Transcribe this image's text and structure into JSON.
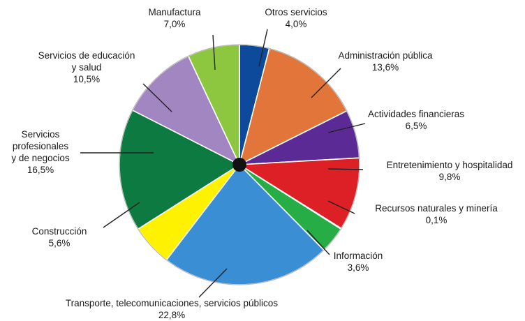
{
  "chart_data": {
    "type": "pie",
    "title": "",
    "slices": [
      {
        "lines": [
          "Otros servicios"
        ],
        "value_label": "4,0%",
        "value": 4.0,
        "color": "#0d4a9c"
      },
      {
        "lines": [
          "Administración pública"
        ],
        "value_label": "13,6%",
        "value": 13.6,
        "color": "#e2763a"
      },
      {
        "lines": [
          "Actividades financieras"
        ],
        "value_label": "6,5%",
        "value": 6.5,
        "color": "#5b2a94"
      },
      {
        "lines": [
          "Entretenimiento y hospitalidad"
        ],
        "value_label": "9,8%",
        "value": 9.8,
        "color": "#dd1f26"
      },
      {
        "lines": [
          "Recursos naturales y minería"
        ],
        "value_label": "0,1%",
        "value": 0.1,
        "color": "#86d3f2"
      },
      {
        "lines": [
          "Información"
        ],
        "value_label": "3,6%",
        "value": 3.6,
        "color": "#27ad45"
      },
      {
        "lines": [
          "Transporte, telecomunicaciones, servicios públicos"
        ],
        "value_label": "22,8%",
        "value": 22.8,
        "color": "#3a8ed4"
      },
      {
        "lines": [
          "Construcción"
        ],
        "value_label": "5,6%",
        "value": 5.6,
        "color": "#fff200"
      },
      {
        "lines": [
          "Servicios",
          "profesionales",
          "y de negocios"
        ],
        "value_label": "16,5%",
        "value": 16.5,
        "color": "#0c7a41"
      },
      {
        "lines": [
          "Servicios de educación",
          "y salud"
        ],
        "value_label": "10,5%",
        "value": 10.5,
        "color": "#a186c1"
      },
      {
        "lines": [
          "Manufactura"
        ],
        "value_label": "7,0%",
        "value": 7.0,
        "color": "#8dc63f"
      }
    ]
  }
}
